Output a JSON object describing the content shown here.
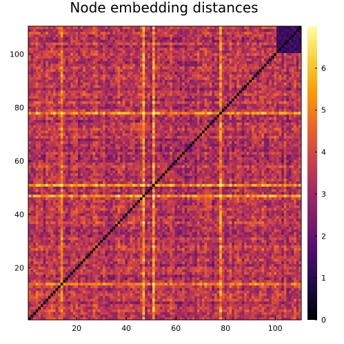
{
  "chart_data": {
    "type": "heatmap",
    "title": "Node embedding distances",
    "xlabel": "",
    "ylabel": "",
    "n": 110,
    "xlim": [
      0.5,
      110.5
    ],
    "ylim": [
      0.5,
      110.5
    ],
    "x_ticks": [
      20,
      40,
      60,
      80,
      100
    ],
    "y_ticks": [
      20,
      40,
      60,
      80,
      100
    ],
    "diagonal_value": 0,
    "colorbar": {
      "range": [
        0,
        7
      ],
      "ticks": [
        0,
        1,
        2,
        3,
        4,
        5,
        6
      ],
      "colormap": "inferno",
      "stops": [
        "#000004",
        "#1b0c41",
        "#4a0c6b",
        "#781c6d",
        "#a52c60",
        "#cf4446",
        "#ed6925",
        "#fb9b06",
        "#f7d13d",
        "#fcffa4"
      ]
    },
    "row_col_levels": {
      "bright": [
        14,
        47,
        51,
        78
      ],
      "bright_boost": 1.8,
      "dark_block": [
        101,
        110
      ],
      "dark_block_level": 1.0
    }
  }
}
